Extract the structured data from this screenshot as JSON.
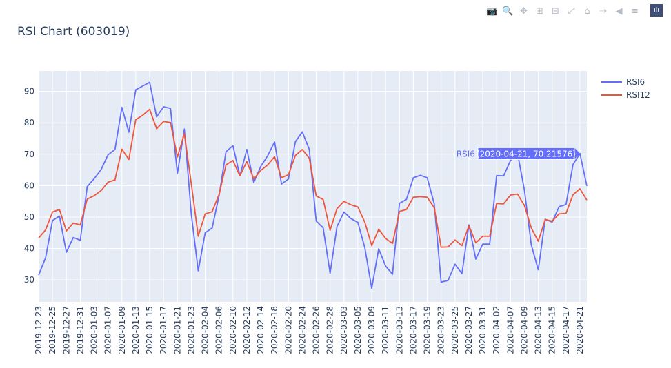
{
  "chart_title": "RSI Chart (603019)",
  "modebar": {
    "items": [
      {
        "name": "download-plot-button",
        "icon": "camera-icon",
        "glyph": "📷"
      },
      {
        "name": "zoom-button",
        "icon": "zoom-icon",
        "glyph": "🔍"
      },
      {
        "name": "pan-button",
        "icon": "pan-icon",
        "glyph": "✥"
      },
      {
        "name": "zoom-in-button",
        "icon": "plus-box-icon",
        "glyph": "⊞"
      },
      {
        "name": "zoom-out-button",
        "icon": "minus-box-icon",
        "glyph": "⊟"
      },
      {
        "name": "autoscale-button",
        "icon": "autoscale-icon",
        "glyph": "⤢"
      },
      {
        "name": "reset-axes-button",
        "icon": "home-icon",
        "glyph": "⌂"
      },
      {
        "name": "spike-lines-button",
        "icon": "spikelines-icon",
        "glyph": "⇢"
      },
      {
        "name": "hover-closest-button",
        "icon": "hover-closest-icon",
        "glyph": "◀"
      },
      {
        "name": "hover-compare-button",
        "icon": "hover-compare-icon",
        "glyph": "≡"
      },
      {
        "name": "plotly-logo-button",
        "icon": "plotly-logo-icon",
        "glyph": "ılı"
      }
    ]
  },
  "chart_data": {
    "type": "line",
    "title": "RSI Chart (603019)",
    "xlabel": "",
    "ylabel": "",
    "ylim": [
      23,
      96.5
    ],
    "yticks": [
      30,
      40,
      50,
      60,
      70,
      80,
      90
    ],
    "grid": true,
    "legend_position": "top-right",
    "x": [
      "2019-12-23",
      "2019-12-24",
      "2019-12-25",
      "2019-12-26",
      "2019-12-27",
      "2019-12-30",
      "2019-12-31",
      "2020-01-02",
      "2020-01-03",
      "2020-01-06",
      "2020-01-07",
      "2020-01-08",
      "2020-01-09",
      "2020-01-10",
      "2020-01-13",
      "2020-01-14",
      "2020-01-15",
      "2020-01-16",
      "2020-01-17",
      "2020-01-20",
      "2020-01-21",
      "2020-01-22",
      "2020-01-23",
      "2020-02-03",
      "2020-02-04",
      "2020-02-05",
      "2020-02-06",
      "2020-02-07",
      "2020-02-10",
      "2020-02-11",
      "2020-02-12",
      "2020-02-13",
      "2020-02-14",
      "2020-02-17",
      "2020-02-18",
      "2020-02-19",
      "2020-02-20",
      "2020-02-21",
      "2020-02-24",
      "2020-02-25",
      "2020-02-26",
      "2020-02-27",
      "2020-02-28",
      "2020-03-02",
      "2020-03-03",
      "2020-03-04",
      "2020-03-05",
      "2020-03-06",
      "2020-03-09",
      "2020-03-10",
      "2020-03-11",
      "2020-03-12",
      "2020-03-13",
      "2020-03-16",
      "2020-03-17",
      "2020-03-18",
      "2020-03-19",
      "2020-03-20",
      "2020-03-23",
      "2020-03-24",
      "2020-03-25",
      "2020-03-26",
      "2020-03-27",
      "2020-03-30",
      "2020-03-31",
      "2020-04-01",
      "2020-04-02",
      "2020-04-03",
      "2020-04-07",
      "2020-04-08",
      "2020-04-09",
      "2020-04-10",
      "2020-04-13",
      "2020-04-14",
      "2020-04-15",
      "2020-04-16",
      "2020-04-17",
      "2020-04-20",
      "2020-04-21",
      "2020-04-22"
    ],
    "xticks": [
      "2019-12-23",
      "2019-12-25",
      "2019-12-27",
      "2019-12-31",
      "2020-01-03",
      "2020-01-07",
      "2020-01-09",
      "2020-01-13",
      "2020-01-15",
      "2020-01-17",
      "2020-01-21",
      "2020-01-23",
      "2020-02-04",
      "2020-02-06",
      "2020-02-10",
      "2020-02-12",
      "2020-02-14",
      "2020-02-18",
      "2020-02-20",
      "2020-02-24",
      "2020-02-26",
      "2020-02-28",
      "2020-03-03",
      "2020-03-05",
      "2020-03-09",
      "2020-03-11",
      "2020-03-13",
      "2020-03-17",
      "2020-03-19",
      "2020-03-23",
      "2020-03-25",
      "2020-03-27",
      "2020-03-31",
      "2020-04-02",
      "2020-04-07",
      "2020-04-09",
      "2020-04-13",
      "2020-04-15",
      "2020-04-17",
      "2020-04-21"
    ],
    "series": [
      {
        "name": "RSI6",
        "color": "#636efa",
        "values": [
          31.5,
          37.0,
          48.9,
          50.3,
          38.8,
          43.5,
          42.6,
          59.7,
          62.2,
          65.1,
          69.8,
          71.5,
          84.9,
          77.0,
          90.5,
          91.7,
          92.9,
          81.9,
          85.1,
          84.6,
          63.9,
          78.0,
          50.9,
          32.9,
          45.0,
          46.5,
          56.8,
          70.8,
          72.7,
          63.1,
          71.5,
          61.0,
          66.1,
          69.5,
          73.9,
          60.5,
          62.1,
          74.0,
          77.1,
          71.5,
          48.7,
          46.6,
          32.1,
          47.0,
          51.6,
          49.5,
          48.3,
          40.3,
          27.3,
          39.9,
          34.4,
          31.8,
          54.4,
          55.6,
          62.5,
          63.3,
          62.5,
          54.3,
          29.3,
          29.8,
          35.0,
          32.0,
          47.5,
          36.6,
          41.4,
          41.4,
          63.2,
          63.1,
          68.0,
          70.4,
          58.6,
          41.1,
          33.2,
          49.3,
          48.4,
          53.3,
          54.0,
          66.7,
          70.21576,
          59.9
        ]
      },
      {
        "name": "RSI12",
        "color": "#ef553b",
        "values": [
          43.3,
          45.9,
          51.6,
          52.4,
          45.6,
          48.1,
          47.5,
          55.7,
          56.8,
          58.4,
          61.1,
          61.8,
          71.6,
          68.3,
          81.0,
          82.4,
          84.3,
          78.1,
          80.4,
          80.1,
          69.1,
          76.5,
          60.6,
          43.9,
          51.0,
          51.7,
          57.2,
          66.6,
          68.0,
          63.1,
          67.7,
          62.1,
          64.8,
          66.6,
          69.2,
          62.5,
          63.5,
          69.6,
          71.5,
          68.7,
          56.7,
          55.6,
          45.8,
          52.7,
          55.0,
          53.9,
          53.2,
          48.4,
          40.9,
          46.1,
          43.2,
          41.6,
          51.8,
          52.4,
          56.3,
          56.5,
          56.3,
          53.0,
          40.4,
          40.5,
          42.7,
          40.9,
          47.3,
          41.8,
          43.9,
          43.9,
          54.3,
          54.2,
          57.0,
          57.3,
          53.7,
          46.5,
          42.3,
          49.2,
          48.7,
          51.0,
          51.2,
          57.1,
          59.0,
          55.4
        ]
      }
    ],
    "hover_label": {
      "series": "RSI6",
      "text": "(2020-04-21, 70.21576)",
      "index": 78
    }
  }
}
